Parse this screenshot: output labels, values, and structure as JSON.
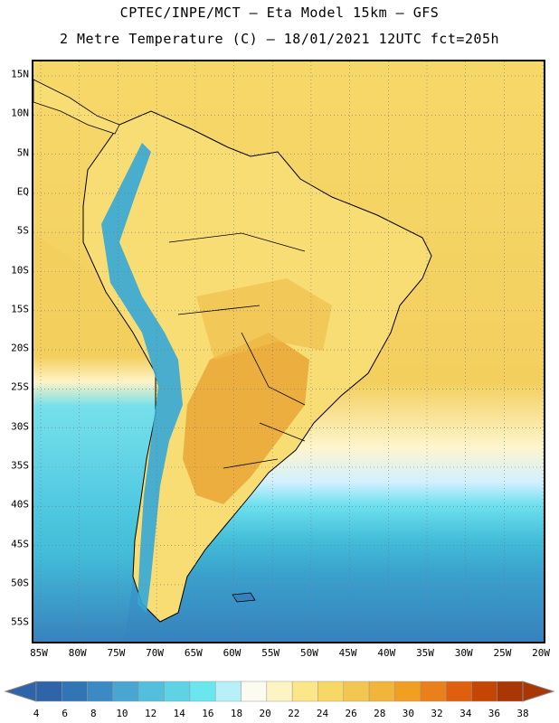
{
  "header": {
    "line1": "CPTEC/INPE/MCT –  Eta Model 15km – GFS",
    "line2": "2 Metre Temperature (C) – 18/01/2021 12UTC fct=205h"
  },
  "map": {
    "lat_labels": [
      "15N",
      "10N",
      "5N",
      "EQ",
      "5S",
      "10S",
      "15S",
      "20S",
      "25S",
      "30S",
      "35S",
      "40S",
      "45S",
      "50S",
      "55S"
    ],
    "lon_labels": [
      "85W",
      "80W",
      "75W",
      "70W",
      "65W",
      "60W",
      "55W",
      "50W",
      "45W",
      "40W",
      "35W",
      "30W",
      "25W",
      "20W"
    ],
    "ocean_color": "#f3cf5e",
    "south_ocean_gradient": [
      "#fff5cc",
      "#d3f0ff",
      "#6ee0ef",
      "#43bdd9",
      "#3aa0cc",
      "#3680bc"
    ],
    "land_color": "#f7dd74",
    "land_hot_color": "#e9a83a",
    "andes_color": "#35a7d8"
  },
  "colorbar": {
    "labels": [
      "4",
      "6",
      "8",
      "10",
      "12",
      "14",
      "16",
      "18",
      "20",
      "22",
      "24",
      "26",
      "28",
      "30",
      "32",
      "34",
      "36",
      "38"
    ],
    "colors": [
      "#2f64a8",
      "#3275b5",
      "#3c8ac4",
      "#48a6d1",
      "#54bfdc",
      "#5fd3e4",
      "#6ae6ee",
      "#b7f1f7",
      "#fbfbf0",
      "#fdf4c4",
      "#fbe788",
      "#f8d865",
      "#f2c650",
      "#f0b53a",
      "#f19f22",
      "#ea801c",
      "#e05f0e",
      "#c34604",
      "#a83705"
    ]
  }
}
